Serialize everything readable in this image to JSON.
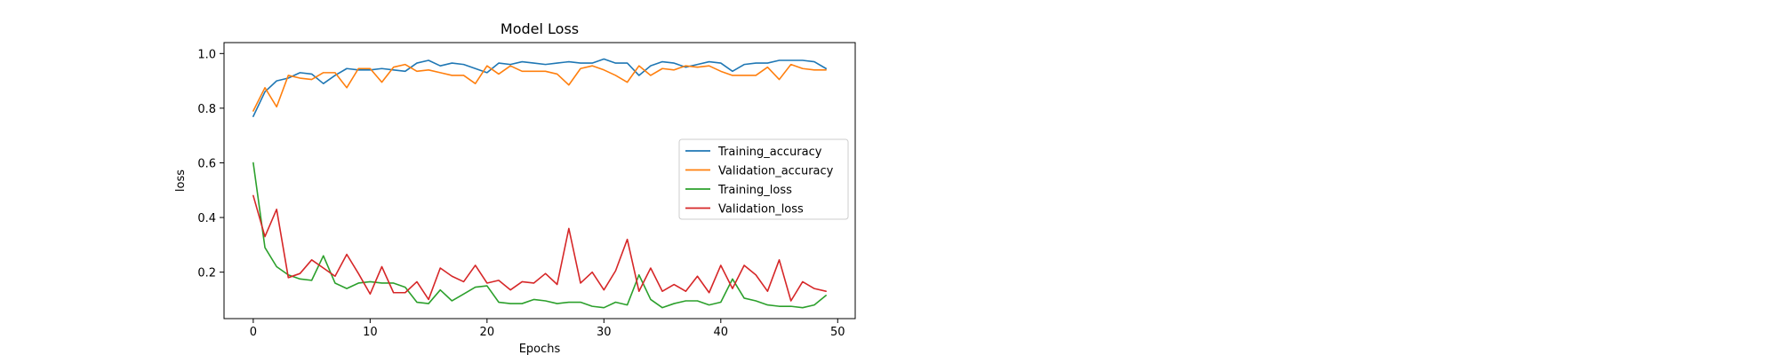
{
  "chart_data": {
    "type": "line",
    "title": "Model Loss",
    "xlabel": "Epochs",
    "ylabel": "loss",
    "xlim": [
      -2.5,
      51.5
    ],
    "ylim": [
      0.03,
      1.04
    ],
    "xticks": [
      0,
      10,
      20,
      30,
      40,
      50
    ],
    "yticks": [
      0.2,
      0.4,
      0.6,
      0.8,
      1.0
    ],
    "xtick_labels": [
      "0",
      "10",
      "20",
      "30",
      "40",
      "50"
    ],
    "ytick_labels": [
      "0.2",
      "0.4",
      "0.6",
      "0.8",
      "1.0"
    ],
    "grid": false,
    "legend_position": "center-right",
    "x": [
      0,
      1,
      2,
      3,
      4,
      5,
      6,
      7,
      8,
      9,
      10,
      11,
      12,
      13,
      14,
      15,
      16,
      17,
      18,
      19,
      20,
      21,
      22,
      23,
      24,
      25,
      26,
      27,
      28,
      29,
      30,
      31,
      32,
      33,
      34,
      35,
      36,
      37,
      38,
      39,
      40,
      41,
      42,
      43,
      44,
      45,
      46,
      47,
      48,
      49
    ],
    "series": [
      {
        "name": "Training_accuracy",
        "color": "#1f77b4",
        "values": [
          0.77,
          0.86,
          0.9,
          0.91,
          0.93,
          0.925,
          0.89,
          0.92,
          0.945,
          0.94,
          0.94,
          0.945,
          0.94,
          0.935,
          0.965,
          0.975,
          0.955,
          0.965,
          0.96,
          0.945,
          0.93,
          0.965,
          0.96,
          0.97,
          0.965,
          0.96,
          0.965,
          0.97,
          0.965,
          0.965,
          0.98,
          0.965,
          0.965,
          0.92,
          0.955,
          0.97,
          0.965,
          0.95,
          0.96,
          0.97,
          0.965,
          0.935,
          0.96,
          0.965,
          0.965,
          0.975,
          0.975,
          0.975,
          0.97,
          0.945
        ]
      },
      {
        "name": "Validation_accuracy",
        "color": "#ff7f0e",
        "values": [
          0.79,
          0.875,
          0.805,
          0.92,
          0.91,
          0.905,
          0.93,
          0.93,
          0.875,
          0.945,
          0.945,
          0.895,
          0.95,
          0.96,
          0.935,
          0.94,
          0.93,
          0.92,
          0.92,
          0.89,
          0.955,
          0.925,
          0.955,
          0.935,
          0.935,
          0.935,
          0.925,
          0.885,
          0.945,
          0.955,
          0.94,
          0.92,
          0.895,
          0.955,
          0.92,
          0.945,
          0.94,
          0.955,
          0.95,
          0.955,
          0.935,
          0.92,
          0.92,
          0.92,
          0.95,
          0.905,
          0.96,
          0.945,
          0.94,
          0.94
        ]
      },
      {
        "name": "Training_loss",
        "color": "#2ca02c",
        "values": [
          0.6,
          0.29,
          0.22,
          0.19,
          0.175,
          0.17,
          0.26,
          0.16,
          0.14,
          0.16,
          0.165,
          0.16,
          0.16,
          0.145,
          0.09,
          0.085,
          0.135,
          0.095,
          0.12,
          0.145,
          0.15,
          0.09,
          0.085,
          0.085,
          0.1,
          0.095,
          0.085,
          0.09,
          0.09,
          0.075,
          0.07,
          0.09,
          0.08,
          0.19,
          0.1,
          0.07,
          0.085,
          0.095,
          0.095,
          0.08,
          0.09,
          0.175,
          0.105,
          0.095,
          0.08,
          0.075,
          0.075,
          0.07,
          0.08,
          0.115
        ]
      },
      {
        "name": "Validation_loss",
        "color": "#d62728",
        "values": [
          0.48,
          0.33,
          0.43,
          0.18,
          0.195,
          0.245,
          0.215,
          0.185,
          0.265,
          0.195,
          0.12,
          0.22,
          0.125,
          0.125,
          0.165,
          0.1,
          0.215,
          0.185,
          0.165,
          0.225,
          0.16,
          0.17,
          0.135,
          0.165,
          0.16,
          0.195,
          0.155,
          0.36,
          0.16,
          0.2,
          0.135,
          0.205,
          0.32,
          0.13,
          0.215,
          0.13,
          0.155,
          0.13,
          0.185,
          0.125,
          0.225,
          0.14,
          0.225,
          0.19,
          0.13,
          0.245,
          0.095,
          0.165,
          0.14,
          0.13
        ]
      }
    ]
  }
}
